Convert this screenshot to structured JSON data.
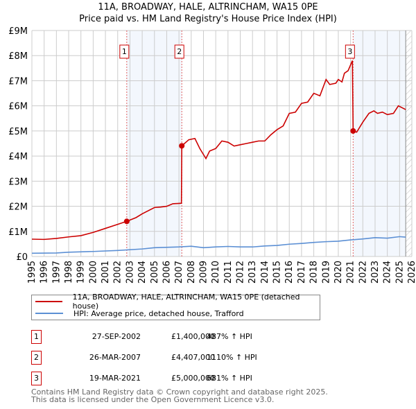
{
  "chart_data": {
    "type": "line",
    "title": "11A, BROADWAY, HALE, ALTRINCHAM, WA15 0PE",
    "subtitle": "Price paid vs. HM Land Registry's House Price Index (HPI)",
    "xlim": [
      1995,
      2026
    ],
    "ylim": [
      0,
      9000000
    ],
    "x_ticks": [
      "1995",
      "1996",
      "1997",
      "1998",
      "1999",
      "2000",
      "2001",
      "2002",
      "2003",
      "2004",
      "2005",
      "2006",
      "2007",
      "2008",
      "2009",
      "2010",
      "2011",
      "2012",
      "2013",
      "2014",
      "2015",
      "2016",
      "2017",
      "2018",
      "2019",
      "2020",
      "2021",
      "2022",
      "2023",
      "2024",
      "2025",
      "2026"
    ],
    "y_ticks": [
      {
        "v": 0,
        "label": "£0"
      },
      {
        "v": 1000000,
        "label": "£1M"
      },
      {
        "v": 2000000,
        "label": "£2M"
      },
      {
        "v": 3000000,
        "label": "£3M"
      },
      {
        "v": 4000000,
        "label": "£4M"
      },
      {
        "v": 5000000,
        "label": "£5M"
      },
      {
        "v": 6000000,
        "label": "£6M"
      },
      {
        "v": 7000000,
        "label": "£7M"
      },
      {
        "v": 8000000,
        "label": "£8M"
      },
      {
        "v": 9000000,
        "label": "£9M"
      }
    ],
    "grid": true,
    "series": [
      {
        "name": "11A, BROADWAY, HALE, ALTRINCHAM, WA15 0PE (detached house)",
        "color": "#cc0000",
        "x": [
          1995,
          1996,
          1997,
          1998,
          1999,
          2000,
          2001,
          2002,
          2002.74,
          2003.5,
          2004,
          2005,
          2005.5,
          2006,
          2006.5,
          2007.2,
          2007.23,
          2007.8,
          2008.3,
          2008.7,
          2009.2,
          2009.5,
          2010,
          2010.5,
          2011,
          2011.5,
          2012,
          2012.5,
          2013,
          2013.5,
          2014,
          2014.5,
          2015,
          2015.5,
          2016,
          2016.5,
          2017,
          2017.5,
          2018,
          2018.5,
          2019,
          2019.3,
          2019.8,
          2020,
          2020.3,
          2020.5,
          2020.8,
          2021.15,
          2021.21,
          2021.5,
          2022,
          2022.5,
          2022.9,
          2023.2,
          2023.6,
          2024,
          2024.5,
          2024.9,
          2025.5
        ],
        "y": [
          690000,
          680000,
          720000,
          780000,
          830000,
          960000,
          1120000,
          1280000,
          1400000,
          1550000,
          1700000,
          1950000,
          1970000,
          2000000,
          2100000,
          2120000,
          4407000,
          4650000,
          4700000,
          4300000,
          3900000,
          4200000,
          4300000,
          4600000,
          4550000,
          4400000,
          4450000,
          4500000,
          4550000,
          4600000,
          4600000,
          4850000,
          5050000,
          5200000,
          5700000,
          5750000,
          6100000,
          6150000,
          6500000,
          6400000,
          7050000,
          6850000,
          6900000,
          7050000,
          6950000,
          7300000,
          7400000,
          7800000,
          5000000,
          4950000,
          5350000,
          5700000,
          5800000,
          5700000,
          5750000,
          5650000,
          5700000,
          6000000,
          5850000
        ]
      },
      {
        "name": "HPI: Average price, detached house, Trafford",
        "color": "#5b8fd4",
        "x": [
          1995,
          1997,
          1998,
          2000,
          2002,
          2004,
          2005,
          2007,
          2008,
          2009,
          2010,
          2011,
          2012,
          2013,
          2014,
          2015,
          2016,
          2017,
          2018,
          2019,
          2020,
          2021,
          2022,
          2023,
          2024,
          2025,
          2025.5
        ],
        "y": [
          130000,
          140000,
          170000,
          200000,
          240000,
          300000,
          350000,
          380000,
          410000,
          350000,
          380000,
          400000,
          380000,
          380000,
          420000,
          440000,
          490000,
          520000,
          560000,
          590000,
          610000,
          660000,
          700000,
          750000,
          730000,
          790000,
          770000
        ]
      }
    ],
    "sales": [
      {
        "id": "1",
        "x": 2002.74,
        "y": 1400000,
        "date": "27-SEP-2002",
        "price": "£1,400,000",
        "hpi": "487% ↑ HPI"
      },
      {
        "id": "2",
        "x": 2007.23,
        "y": 4407000,
        "date": "26-MAR-2007",
        "price": "£4,407,000",
        "hpi": "1110% ↑ HPI"
      },
      {
        "id": "3",
        "x": 2021.21,
        "y": 5000000,
        "date": "19-MAR-2021",
        "price": "£5,000,000",
        "hpi": "681% ↑ HPI"
      }
    ],
    "shaded": [
      [
        2002.74,
        2007.23
      ],
      [
        2021.21,
        2025.5
      ]
    ],
    "forecast_hatch_from": 2025.5
  },
  "footer": {
    "line1": "Contains HM Land Registry data © Crown copyright and database right 2025.",
    "line2": "This data is licensed under the Open Government Licence v3.0."
  }
}
